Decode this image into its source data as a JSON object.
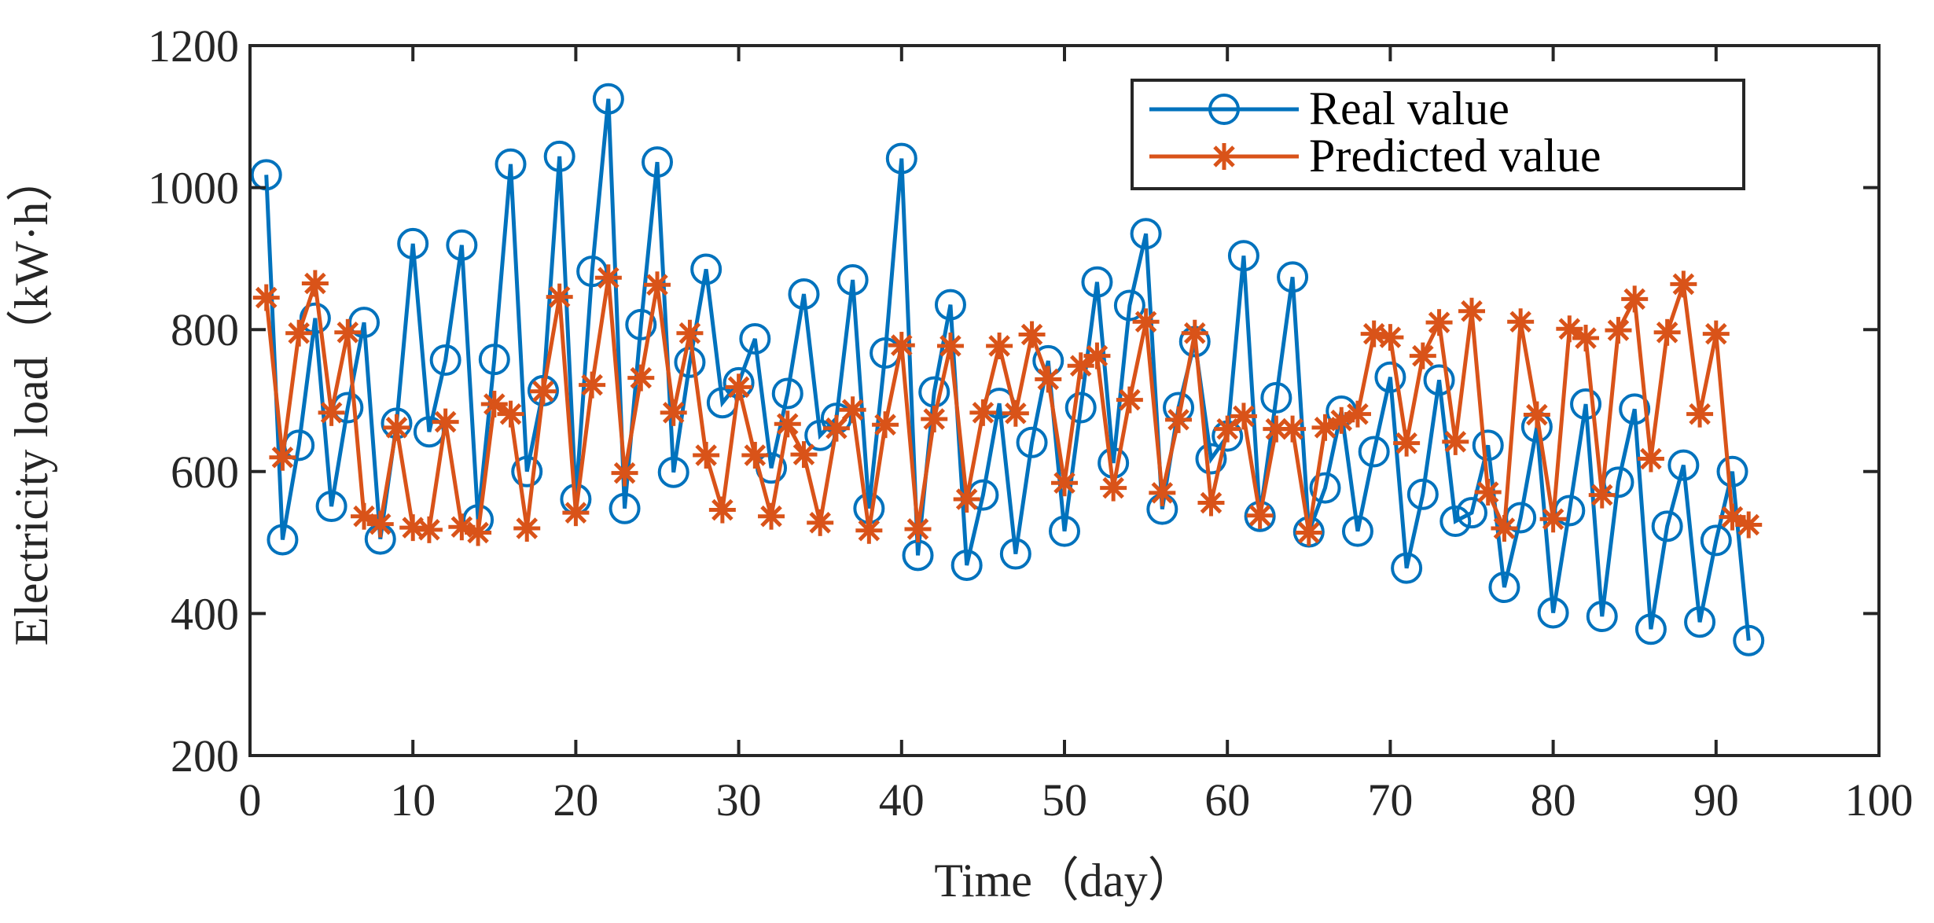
{
  "chart_data": {
    "type": "line",
    "xlabel": "Time（day）",
    "ylabel": "Electricity load（kW·h）",
    "xlim": [
      0,
      100
    ],
    "ylim": [
      200,
      1200
    ],
    "xticks": [
      0,
      10,
      20,
      30,
      40,
      50,
      60,
      70,
      80,
      90,
      100
    ],
    "yticks": [
      200,
      400,
      600,
      800,
      1000,
      1200
    ],
    "xtick_labels": [
      "0",
      "10",
      "20",
      "30",
      "40",
      "50",
      "60",
      "70",
      "80",
      "90",
      "100"
    ],
    "ytick_labels": [
      "200",
      "400",
      "600",
      "800",
      "1000",
      "1200"
    ],
    "grid": false,
    "legend_position": "top-right",
    "x": [
      1,
      2,
      3,
      4,
      5,
      6,
      7,
      8,
      9,
      10,
      11,
      12,
      13,
      14,
      15,
      16,
      17,
      18,
      19,
      20,
      21,
      22,
      23,
      24,
      25,
      26,
      27,
      28,
      29,
      30,
      31,
      32,
      33,
      34,
      35,
      36,
      37,
      38,
      39,
      40,
      41,
      42,
      43,
      44,
      45,
      46,
      47,
      48,
      49,
      50,
      51,
      52,
      53,
      54,
      55,
      56,
      57,
      58,
      59,
      60,
      61,
      62,
      63,
      64,
      65,
      66,
      67,
      68,
      69,
      70,
      71,
      72,
      73,
      74,
      75,
      76,
      77,
      78,
      79,
      80,
      81,
      82,
      83,
      84,
      85,
      86,
      87,
      88,
      89,
      90,
      91,
      92
    ],
    "series": [
      {
        "name": "Real value",
        "color": "#0072BD",
        "marker": "circle",
        "values": [
          1018,
          504,
          637,
          816,
          551,
          690,
          810,
          505,
          668,
          921,
          656,
          757,
          919,
          532,
          758,
          1033,
          600,
          714,
          1044,
          561,
          882,
          1125,
          548,
          807,
          1036,
          599,
          754,
          885,
          697,
          725,
          787,
          605,
          710,
          850,
          651,
          675,
          870,
          548,
          767,
          1041,
          482,
          712,
          835,
          468,
          567,
          696,
          484,
          641,
          756,
          516,
          690,
          867,
          612,
          834,
          935,
          547,
          690,
          783,
          618,
          650,
          904,
          537,
          704,
          874,
          515,
          577,
          685,
          516,
          628,
          733,
          464,
          568,
          729,
          530,
          542,
          637,
          437,
          535,
          663,
          401,
          545,
          695,
          396,
          585,
          688,
          378,
          523,
          609,
          388,
          503,
          600,
          362
        ]
      },
      {
        "name": "Predicted value",
        "color": "#D95319",
        "marker": "asterisk",
        "values": [
          845,
          620,
          795,
          865,
          683,
          796,
          537,
          526,
          662,
          521,
          518,
          670,
          522,
          514,
          695,
          681,
          520,
          713,
          846,
          542,
          722,
          873,
          598,
          732,
          863,
          683,
          795,
          623,
          546,
          719,
          623,
          537,
          667,
          624,
          528,
          661,
          687,
          517,
          666,
          778,
          519,
          674,
          777,
          561,
          683,
          777,
          682,
          793,
          730,
          584,
          749,
          763,
          577,
          701,
          811,
          570,
          673,
          795,
          556,
          660,
          678,
          538,
          660,
          660,
          514,
          662,
          672,
          681,
          794,
          789,
          640,
          763,
          810,
          642,
          826,
          571,
          520,
          811,
          680,
          533,
          801,
          788,
          567,
          799,
          843,
          618,
          796,
          864,
          681,
          794,
          536,
          525
        ]
      }
    ]
  }
}
